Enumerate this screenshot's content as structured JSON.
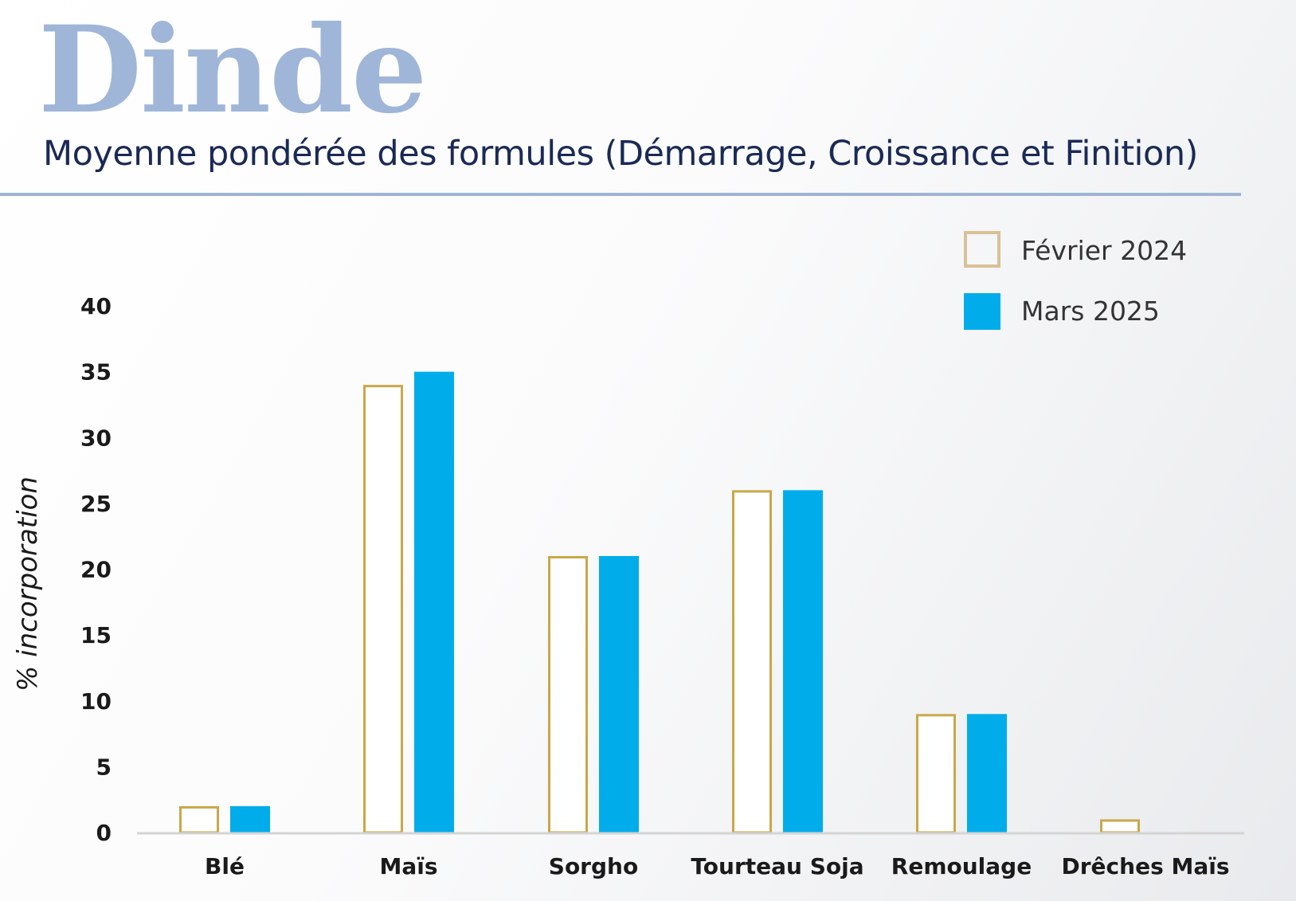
{
  "chart_data": {
    "type": "bar",
    "title": "Dinde",
    "subtitle": "Moyenne pondérée des formules (Démarrage, Croissance et Finition)",
    "xlabel": "",
    "ylabel": "% incorporation",
    "ylim": [
      0,
      40
    ],
    "yticks": [
      0,
      5,
      10,
      15,
      20,
      25,
      30,
      35,
      40
    ],
    "categories": [
      "Blé",
      "Maïs",
      "Sorgho",
      "Tourteau Soja",
      "Remoulage",
      "Drêches Maïs"
    ],
    "series": [
      {
        "name": "Février 2024",
        "values": [
          2,
          34,
          21,
          26,
          9,
          1
        ],
        "style": "outline",
        "color": "#c9a84a"
      },
      {
        "name": "Mars 2025",
        "values": [
          2,
          35,
          21,
          26,
          9,
          0
        ],
        "style": "filled",
        "color": "#00adea"
      }
    ],
    "legend_position": "top-right",
    "grid": false
  },
  "colors": {
    "title": "#9fb6d8",
    "subtitle": "#1a2a55",
    "rule": "#9fb4d3",
    "axis": "#d4d4d4"
  }
}
